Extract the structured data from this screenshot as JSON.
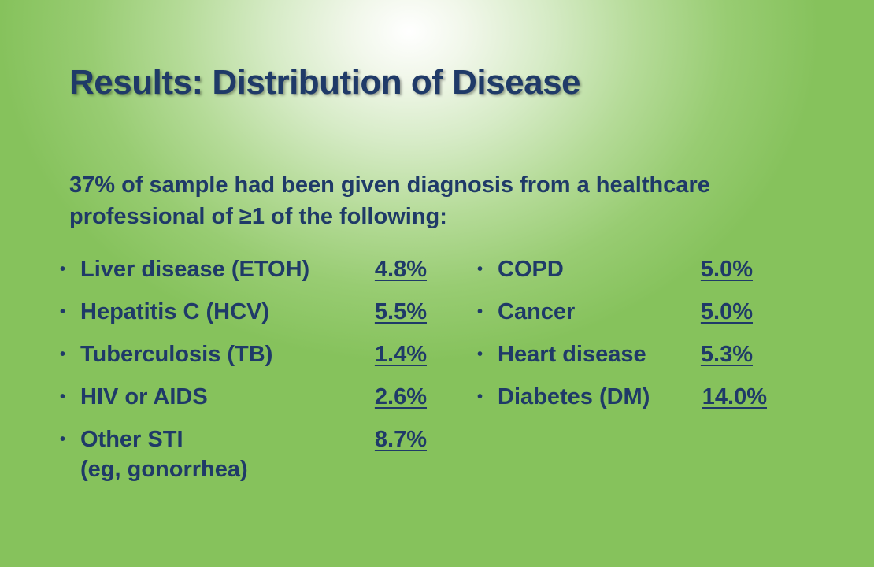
{
  "slide": {
    "title": "Results: Distribution of Disease",
    "intro": "37% of sample had been given diagnosis from a healthcare professional of ≥1 of the following:"
  },
  "left_list": [
    {
      "label": "Liver disease (ETOH)",
      "value": "4.8%"
    },
    {
      "label": "Hepatitis C (HCV)",
      "value": "5.5%"
    },
    {
      "label": "Tuberculosis (TB)",
      "value": "1.4%"
    },
    {
      "label": "HIV or AIDS",
      "value": "2.6%"
    },
    {
      "label": "Other STI",
      "sublabel": "(eg, gonorrhea)",
      "value": "8.7%"
    }
  ],
  "right_list": [
    {
      "label": "COPD",
      "value": "5.0%"
    },
    {
      "label": "Cancer",
      "value": "5.0%"
    },
    {
      "label": "Heart disease",
      "value": "5.3%"
    },
    {
      "label": "Diabetes (DM)",
      "value": "14.0%"
    }
  ],
  "colors": {
    "text": "#1f3a68",
    "background_center": "#ffffff",
    "background_edge": "#86c25c"
  },
  "icons": {
    "bullet": "bullet-dot-icon"
  }
}
